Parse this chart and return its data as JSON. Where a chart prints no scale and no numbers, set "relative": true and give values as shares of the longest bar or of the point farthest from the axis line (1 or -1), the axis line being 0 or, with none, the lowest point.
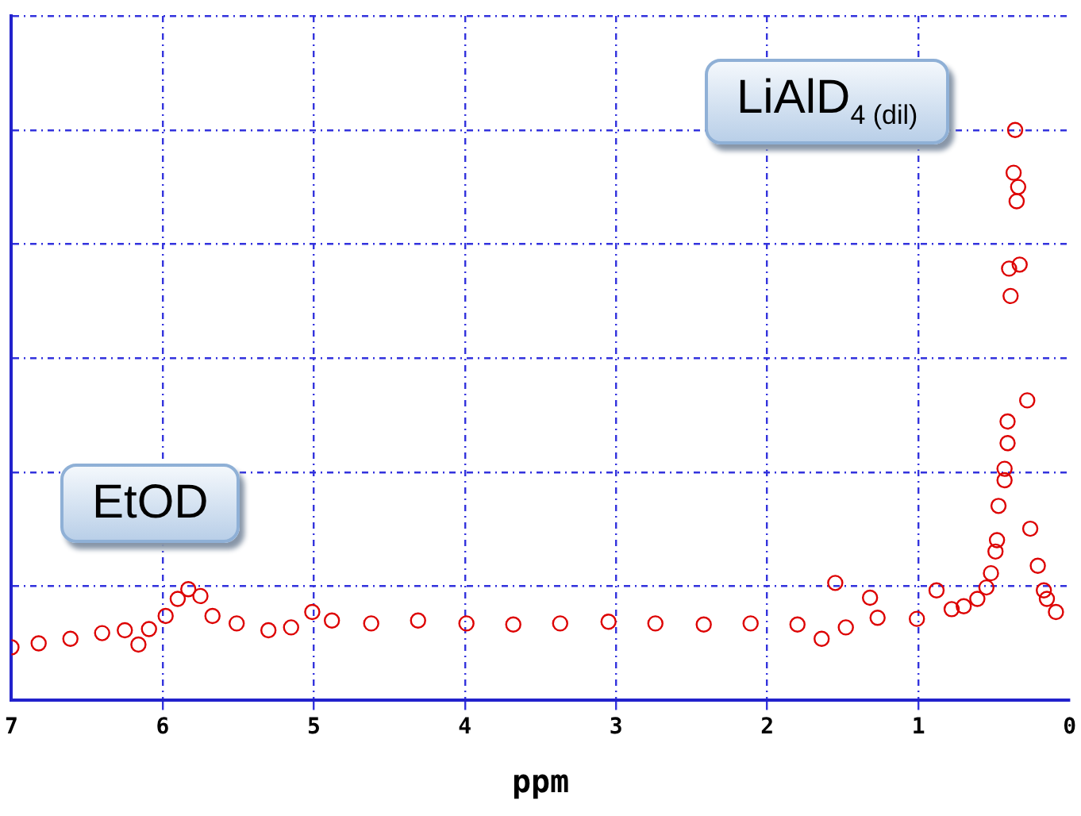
{
  "chart_data": {
    "type": "scatter",
    "xlabel": "ppm",
    "relative": true,
    "xlim": [
      7,
      0
    ],
    "xticks": [
      7,
      6,
      5,
      4,
      3,
      2,
      1,
      0
    ],
    "grid": true,
    "legend": false,
    "marker": "circle",
    "annotations": [
      "EtOD",
      "LiAlD$_{4 (dil)}$"
    ],
    "series": [
      {
        "color": "#dd0000",
        "x": [
          7.0,
          6.82,
          6.61,
          6.4,
          6.25,
          6.16,
          6.09,
          5.98,
          5.9,
          5.83,
          5.75,
          5.67,
          5.51,
          5.3,
          5.15,
          5.01,
          4.88,
          4.62,
          4.31,
          3.99,
          3.68,
          3.37,
          3.05,
          2.74,
          2.42,
          2.11,
          1.8,
          1.64,
          1.55,
          1.48,
          1.32,
          1.27,
          1.01,
          0.88,
          0.78,
          0.7,
          0.61,
          0.55,
          0.52,
          0.49,
          0.48,
          0.47,
          0.43,
          0.43,
          0.41,
          0.41,
          0.39,
          0.4,
          0.33,
          0.35,
          0.34,
          0.37,
          0.36,
          0.28,
          0.26,
          0.21,
          0.17,
          0.15,
          0.09
        ],
        "values": [
          0.093,
          0.1,
          0.108,
          0.118,
          0.123,
          0.098,
          0.125,
          0.148,
          0.178,
          0.195,
          0.183,
          0.148,
          0.135,
          0.123,
          0.128,
          0.155,
          0.14,
          0.135,
          0.14,
          0.135,
          0.133,
          0.135,
          0.138,
          0.135,
          0.133,
          0.135,
          0.133,
          0.108,
          0.206,
          0.128,
          0.18,
          0.145,
          0.143,
          0.193,
          0.16,
          0.165,
          0.178,
          0.198,
          0.223,
          0.261,
          0.281,
          0.341,
          0.386,
          0.406,
          0.451,
          0.489,
          0.709,
          0.757,
          0.764,
          0.875,
          0.9,
          0.925,
          1,
          0.526,
          0.301,
          0.236,
          0.193,
          0.178,
          0.155
        ]
      }
    ]
  }
}
